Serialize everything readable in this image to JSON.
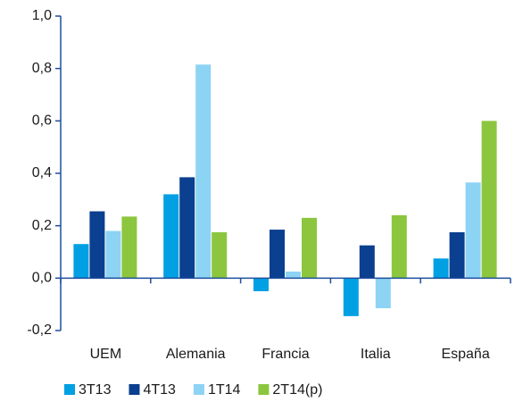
{
  "chart_data": {
    "type": "bar",
    "categories": [
      "UEM",
      "Alemania",
      "Francia",
      "Italia",
      "España"
    ],
    "series": [
      {
        "name": "3T13",
        "color": "#00a0e3",
        "values": [
          0.13,
          0.32,
          -0.05,
          -0.145,
          0.075
        ]
      },
      {
        "name": "4T13",
        "color": "#0b3f8f",
        "values": [
          0.255,
          0.385,
          0.185,
          0.125,
          0.175
        ]
      },
      {
        "name": "1T14",
        "color": "#8dd3f4",
        "values": [
          0.18,
          0.815,
          0.025,
          -0.115,
          0.365
        ]
      },
      {
        "name": "2T14(p)",
        "color": "#8cc63f",
        "values": [
          0.235,
          0.175,
          0.23,
          0.24,
          0.6
        ]
      }
    ],
    "ylim": [
      -0.2,
      1.0
    ],
    "yticks": [
      {
        "value": -0.2,
        "label": "-0,2"
      },
      {
        "value": 0,
        "label": "0,0"
      },
      {
        "value": 0.2,
        "label": "0,2"
      },
      {
        "value": 0.4,
        "label": "0,4"
      },
      {
        "value": 0.6,
        "label": "0,6"
      },
      {
        "value": 0.8,
        "label": "0,8"
      },
      {
        "value": 1.0,
        "label": "1,0"
      }
    ],
    "legend": "bottom"
  }
}
